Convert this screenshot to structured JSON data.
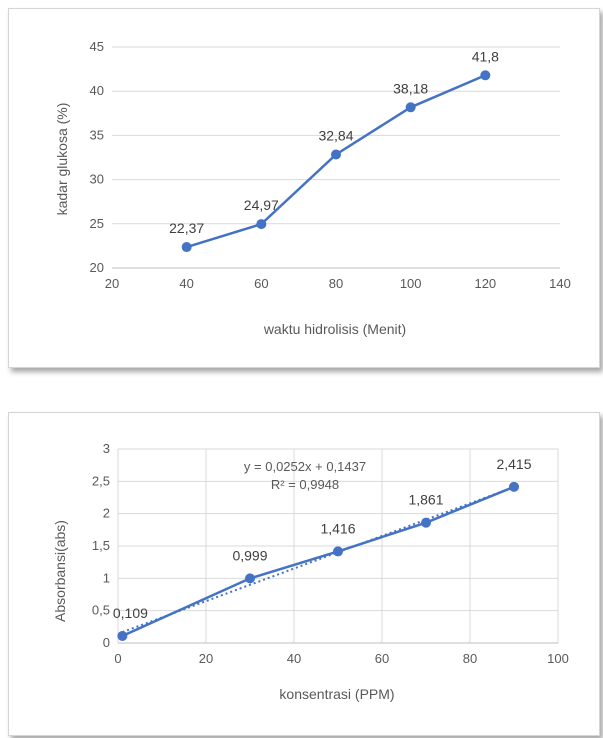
{
  "chart_data": [
    {
      "type": "line",
      "title": "",
      "xlabel": "waktu hidrolisis (Menit)",
      "ylabel": "kadar glukosa (%)",
      "xlim": [
        20,
        140
      ],
      "ylim": [
        20,
        45
      ],
      "xticks": [
        20,
        40,
        60,
        80,
        100,
        120,
        140
      ],
      "yticks": [
        20,
        25,
        30,
        35,
        40,
        45
      ],
      "xtick_labels": [
        "20",
        "40",
        "60",
        "80",
        "100",
        "120",
        "140"
      ],
      "ytick_labels": [
        "20",
        "25",
        "30",
        "35",
        "40",
        "45"
      ],
      "grid": "horizontal",
      "color": "#4472C4",
      "series": [
        {
          "x": [
            40,
            60,
            80,
            100,
            120
          ],
          "y": [
            22.37,
            24.97,
            32.84,
            38.18,
            41.8
          ],
          "labels": [
            "22,37",
            "24,97",
            "32,84",
            "38,18",
            "41,8"
          ]
        }
      ]
    },
    {
      "type": "scatter",
      "title": "",
      "xlabel": "konsentrasi (PPM)",
      "ylabel": "Absorbansi(abs)",
      "xlim": [
        0,
        100
      ],
      "ylim": [
        0,
        3
      ],
      "xticks": [
        0,
        20,
        40,
        60,
        80,
        100
      ],
      "yticks": [
        0,
        0.5,
        1,
        1.5,
        2,
        2.5,
        3
      ],
      "xtick_labels": [
        "0",
        "20",
        "40",
        "60",
        "80",
        "100"
      ],
      "ytick_labels": [
        "0",
        "0,5",
        "1",
        "1,5",
        "2",
        "2,5",
        "3"
      ],
      "grid": "both",
      "color": "#4472C4",
      "series": [
        {
          "x": [
            1,
            30,
            50,
            70,
            90
          ],
          "y": [
            0.109,
            0.999,
            1.416,
            1.861,
            2.415
          ],
          "labels": [
            "0,109",
            "0,999",
            "1,416",
            "1,861",
            "2,415"
          ]
        }
      ],
      "trendline": {
        "type": "linear",
        "slope": 0.0252,
        "intercept": 0.1437,
        "equation": "y = 0,0252x + 0,1437",
        "r2": "R² = 0,9948"
      }
    }
  ]
}
